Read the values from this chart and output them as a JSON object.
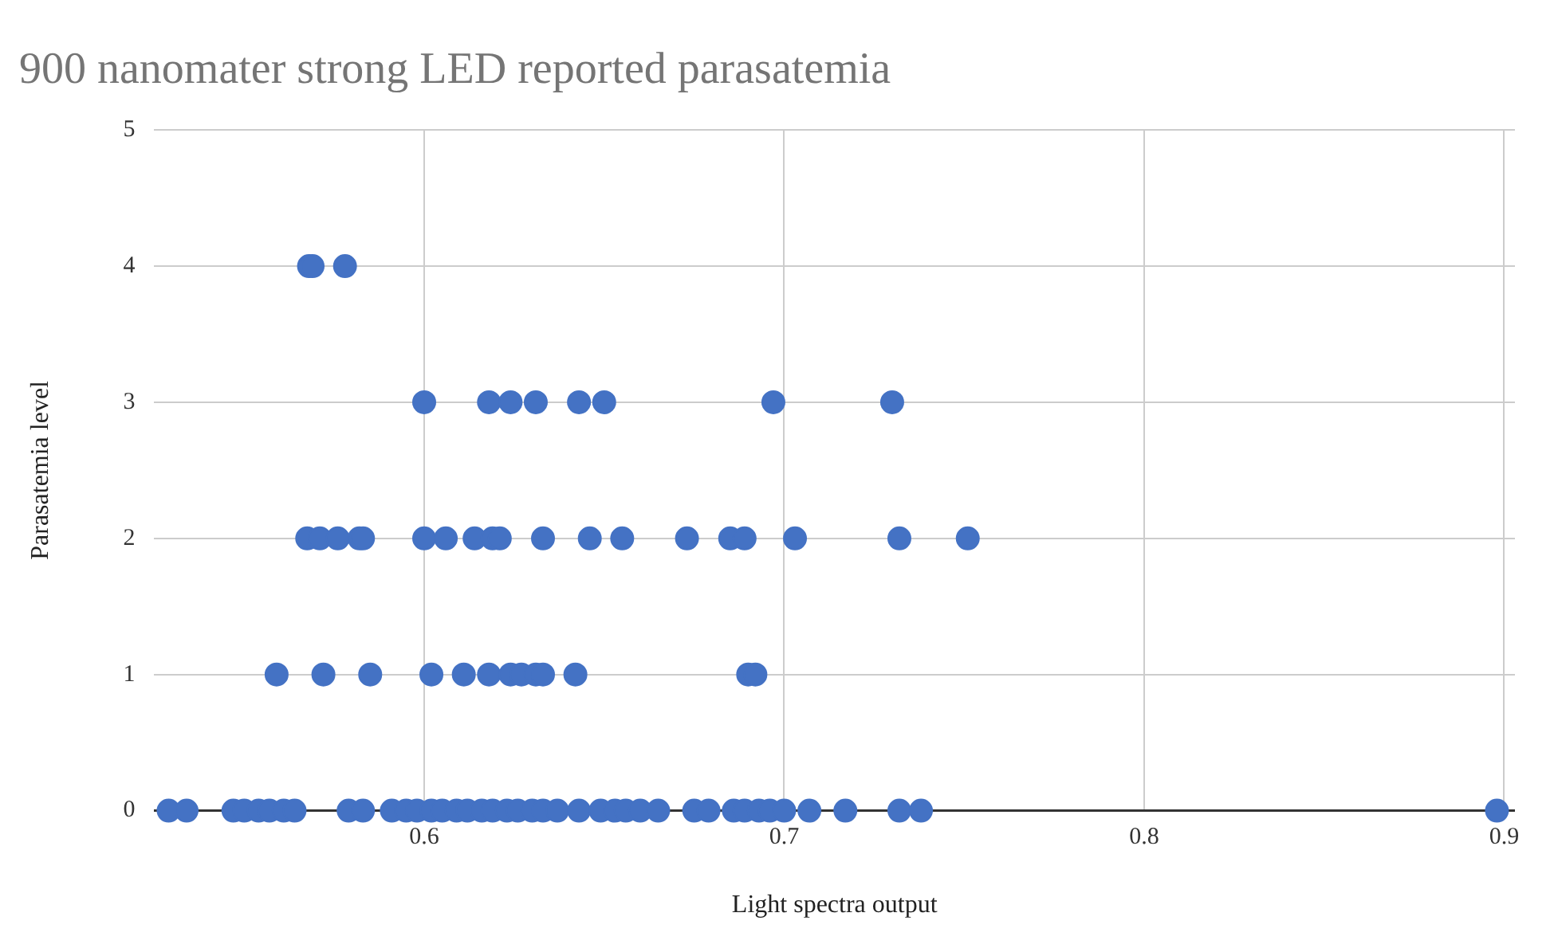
{
  "chart_data": {
    "type": "scatter",
    "title": "900 nanomater strong LED reported parasatemia",
    "xlabel": "Light spectra output",
    "ylabel": "Parasatemia level",
    "xlim": [
      0.525,
      0.903
    ],
    "xticks": [
      0.6,
      0.7,
      0.8,
      0.9
    ],
    "ylim": [
      0,
      5
    ],
    "yticks": [
      0,
      1,
      2,
      3,
      4,
      5
    ],
    "grid": true,
    "marker": "circle",
    "series": [
      {
        "color": "#4472c4",
        "x": [
          0.568,
          0.569,
          0.578,
          0.6,
          0.618,
          0.624,
          0.631,
          0.643,
          0.65,
          0.697,
          0.73,
          0.5675,
          0.571,
          0.576,
          0.582,
          0.583,
          0.6,
          0.606,
          0.614,
          0.619,
          0.621,
          0.633,
          0.646,
          0.655,
          0.673,
          0.685,
          0.689,
          0.703,
          0.732,
          0.751,
          0.559,
          0.572,
          0.585,
          0.602,
          0.611,
          0.618,
          0.624,
          0.627,
          0.631,
          0.633,
          0.642,
          0.69,
          0.692,
          0.529,
          0.534,
          0.547,
          0.55,
          0.554,
          0.557,
          0.561,
          0.564,
          0.579,
          0.583,
          0.591,
          0.595,
          0.598,
          0.602,
          0.605,
          0.609,
          0.612,
          0.616,
          0.619,
          0.623,
          0.626,
          0.63,
          0.633,
          0.637,
          0.643,
          0.649,
          0.653,
          0.656,
          0.66,
          0.665,
          0.675,
          0.679,
          0.686,
          0.689,
          0.693,
          0.696,
          0.7,
          0.707,
          0.717,
          0.732,
          0.738,
          0.898
        ],
        "values": [
          4,
          4,
          4,
          3,
          3,
          3,
          3,
          3,
          3,
          3,
          3,
          2,
          2,
          2,
          2,
          2,
          2,
          2,
          2,
          2,
          2,
          2,
          2,
          2,
          2,
          2,
          2,
          2,
          2,
          2,
          1,
          1,
          1,
          1,
          1,
          1,
          1,
          1,
          1,
          1,
          1,
          1,
          1,
          0,
          0,
          0,
          0,
          0,
          0,
          0,
          0,
          0,
          0,
          0,
          0,
          0,
          0,
          0,
          0,
          0,
          0,
          0,
          0,
          0,
          0,
          0,
          0,
          0,
          0,
          0,
          0,
          0,
          0,
          0,
          0,
          0,
          0,
          0,
          0,
          0,
          0,
          0,
          0,
          0,
          0
        ]
      }
    ]
  }
}
